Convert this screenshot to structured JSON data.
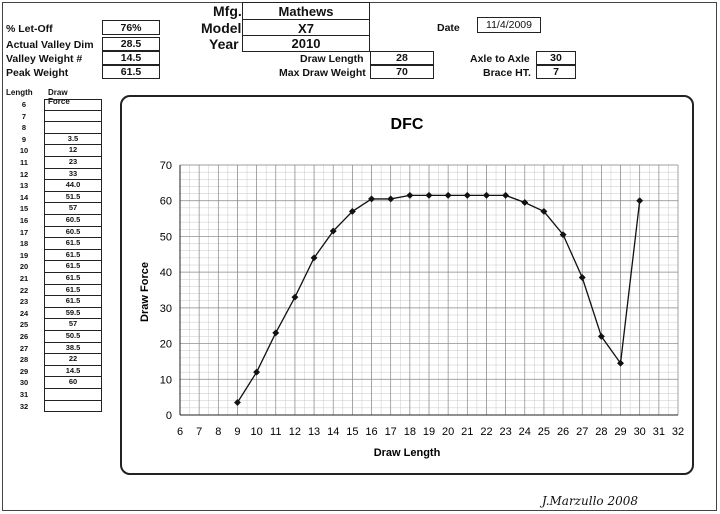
{
  "header": {
    "let_off_label": "% Let-Off",
    "let_off_value": "76%",
    "actual_valley_label": "Actual Valley Dim",
    "actual_valley_value": "28.5",
    "valley_weight_label": "Valley Weight #",
    "valley_weight_value": "14.5",
    "peak_weight_label": "Peak Weight",
    "peak_weight_value": "61.5",
    "mfg_label": "Mfg.",
    "mfg_value": "Mathews",
    "model_label": "Model",
    "model_value": "X7",
    "year_label": "Year",
    "year_value": "2010",
    "draw_length_label": "Draw Length",
    "draw_length_value": "28",
    "max_draw_weight_label": "Max Draw Weight",
    "max_draw_weight_value": "70",
    "date_label": "Date",
    "date_value": "11/4/2009",
    "axle_label": "Axle to Axle",
    "axle_value": "30",
    "brace_label": "Brace HT.",
    "brace_value": "7"
  },
  "table": {
    "length_header": "Length",
    "force_header": "Draw Force",
    "rows": [
      {
        "length": "6",
        "force": ""
      },
      {
        "length": "7",
        "force": ""
      },
      {
        "length": "8",
        "force": ""
      },
      {
        "length": "9",
        "force": "3.5"
      },
      {
        "length": "10",
        "force": "12"
      },
      {
        "length": "11",
        "force": "23"
      },
      {
        "length": "12",
        "force": "33"
      },
      {
        "length": "13",
        "force": "44.0"
      },
      {
        "length": "14",
        "force": "51.5"
      },
      {
        "length": "15",
        "force": "57"
      },
      {
        "length": "16",
        "force": "60.5"
      },
      {
        "length": "17",
        "force": "60.5"
      },
      {
        "length": "18",
        "force": "61.5"
      },
      {
        "length": "19",
        "force": "61.5"
      },
      {
        "length": "20",
        "force": "61.5"
      },
      {
        "length": "21",
        "force": "61.5"
      },
      {
        "length": "22",
        "force": "61.5"
      },
      {
        "length": "23",
        "force": "61.5"
      },
      {
        "length": "24",
        "force": "59.5"
      },
      {
        "length": "25",
        "force": "57"
      },
      {
        "length": "26",
        "force": "50.5"
      },
      {
        "length": "27",
        "force": "38.5"
      },
      {
        "length": "28",
        "force": "22"
      },
      {
        "length": "29",
        "force": "14.5"
      },
      {
        "length": "30",
        "force": "60"
      },
      {
        "length": "31",
        "force": ""
      },
      {
        "length": "32",
        "force": ""
      }
    ]
  },
  "chart_data": {
    "type": "line",
    "title": "DFC",
    "xlabel": "Draw Length",
    "ylabel": "Draw Force",
    "xlim": [
      6,
      32
    ],
    "ylim": [
      0,
      70
    ],
    "xticks": [
      6,
      7,
      8,
      9,
      10,
      11,
      12,
      13,
      14,
      15,
      16,
      17,
      18,
      19,
      20,
      21,
      22,
      23,
      24,
      25,
      26,
      27,
      28,
      29,
      30,
      31,
      32
    ],
    "yticks": [
      0,
      10,
      20,
      30,
      40,
      50,
      60,
      70
    ],
    "grid": true,
    "x": [
      9,
      10,
      11,
      12,
      13,
      14,
      15,
      16,
      17,
      18,
      19,
      20,
      21,
      22,
      23,
      24,
      25,
      26,
      27,
      28,
      29,
      30
    ],
    "values": [
      3.5,
      12,
      23,
      33,
      44,
      51.5,
      57,
      60.5,
      60.5,
      61.5,
      61.5,
      61.5,
      61.5,
      61.5,
      61.5,
      59.5,
      57,
      50.5,
      38.5,
      22,
      14.5,
      60
    ]
  },
  "signature": "J.Marzullo 2008"
}
